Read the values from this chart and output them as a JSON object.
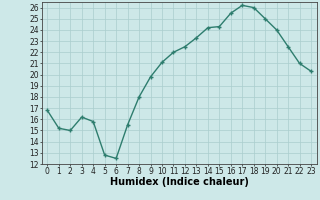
{
  "x": [
    0,
    1,
    2,
    3,
    4,
    5,
    6,
    7,
    8,
    9,
    10,
    11,
    12,
    13,
    14,
    15,
    16,
    17,
    18,
    19,
    20,
    21,
    22,
    23
  ],
  "y": [
    16.8,
    15.2,
    15.0,
    16.2,
    15.8,
    12.8,
    12.5,
    15.5,
    18.0,
    19.8,
    21.1,
    22.0,
    22.5,
    23.3,
    24.2,
    24.3,
    25.5,
    26.2,
    26.0,
    25.0,
    24.0,
    22.5,
    21.0,
    20.3
  ],
  "xlabel": "Humidex (Indice chaleur)",
  "xlim": [
    -0.5,
    23.5
  ],
  "ylim": [
    12,
    26.5
  ],
  "yticks": [
    12,
    13,
    14,
    15,
    16,
    17,
    18,
    19,
    20,
    21,
    22,
    23,
    24,
    25,
    26
  ],
  "xticks": [
    0,
    1,
    2,
    3,
    4,
    5,
    6,
    7,
    8,
    9,
    10,
    11,
    12,
    13,
    14,
    15,
    16,
    17,
    18,
    19,
    20,
    21,
    22,
    23
  ],
  "line_color": "#2e7d6e",
  "marker": "+",
  "marker_size": 3.5,
  "bg_color": "#cde8e8",
  "grid_color": "#aacece",
  "tick_fontsize": 5.5,
  "xlabel_fontsize": 7,
  "linewidth": 1.0
}
